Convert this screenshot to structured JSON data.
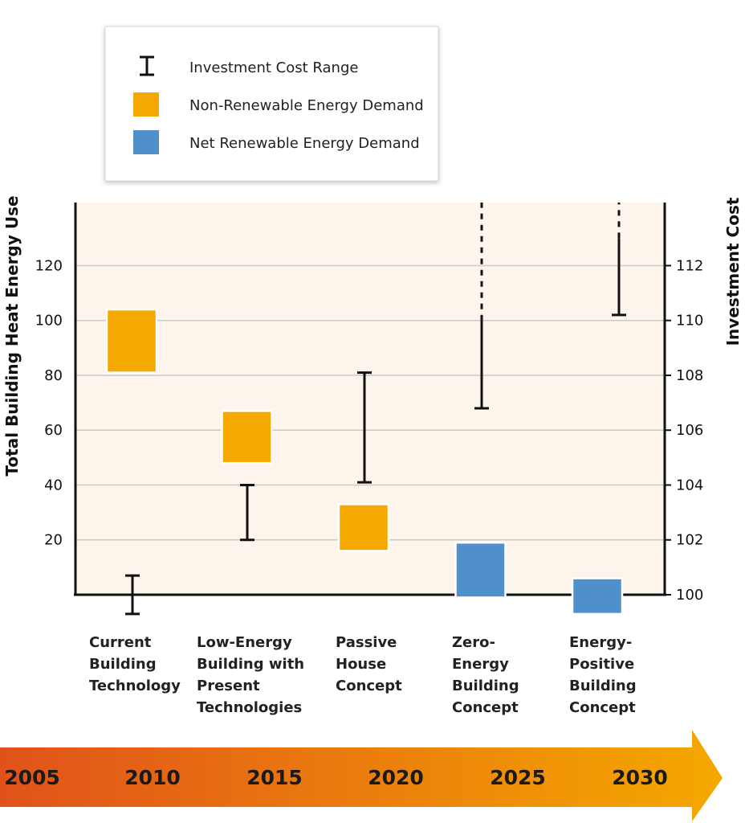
{
  "legend": {
    "items": [
      {
        "label": "Investment Cost Range",
        "symbol": "range"
      },
      {
        "label": "Non-Renewable Energy Demand",
        "symbol": "box",
        "color": "#F5A800"
      },
      {
        "label": "Net Renewable Energy Demand",
        "symbol": "box",
        "color": "#4F8FCB"
      }
    ]
  },
  "chart_data": {
    "type": "box",
    "title": "",
    "ylabel": "Total Building Heat Energy Use",
    "y2label": "Investment Cost",
    "ylim": [
      0,
      143
    ],
    "y2lim": [
      100,
      114.3
    ],
    "yticks": [
      20,
      40,
      60,
      80,
      100,
      120
    ],
    "y2ticks": [
      100,
      102,
      104,
      106,
      108,
      110,
      112
    ],
    "grid": true,
    "legend_position": "top-left",
    "colors": {
      "non_renewable": "#F5A800",
      "net_renewable": "#4F8FCB",
      "plot_bg": "#FDF5EB",
      "range": "#111111"
    },
    "categories": [
      {
        "lines": [
          "Current",
          "Building",
          "Technology"
        ],
        "x": 2010
      },
      {
        "lines": [
          "Low-Energy",
          "Building with",
          "Present",
          "Technologies"
        ],
        "x": 2015
      },
      {
        "lines": [
          "Passive",
          "House",
          "Concept"
        ],
        "x": 2020
      },
      {
        "lines": [
          "Zero-",
          "Energy",
          "Building",
          "Concept"
        ],
        "x": 2025
      },
      {
        "lines": [
          "Energy-",
          "Positive",
          "Building",
          "Concept"
        ],
        "x": 2030
      }
    ],
    "energy_demand": [
      {
        "category": "Current Building Technology",
        "type": "non-renewable",
        "low": 81,
        "high": 104
      },
      {
        "category": "Low-Energy Building with Present Technologies",
        "type": "non-renewable",
        "low": 48,
        "high": 67
      },
      {
        "category": "Passive House Concept",
        "type": "non-renewable",
        "low": 16,
        "high": 33
      },
      {
        "category": "Zero-Energy Building Concept",
        "type": "net-renewable",
        "low": -1,
        "high": 19
      },
      {
        "category": "Energy-Positive Building Concept",
        "type": "net-renewable",
        "low": -7,
        "high": 6
      }
    ],
    "investment_cost_range": [
      {
        "category": "Current Building Technology",
        "low": 99.3,
        "high": 100.7
      },
      {
        "category": "Low-Energy Building with Present Technologies",
        "low": 102,
        "high": 104
      },
      {
        "category": "Passive House Concept",
        "low": 104.1,
        "high": 108.1
      },
      {
        "category": "Zero-Energy Building Concept",
        "low": 106.8,
        "high": 110,
        "open_high": true
      },
      {
        "category": "Energy-Positive Building Concept",
        "low": 110.2,
        "high": 113,
        "open_high": true
      }
    ],
    "timeline": {
      "years": [
        "2005",
        "2010",
        "2015",
        "2020",
        "2025",
        "2030"
      ],
      "gradient": [
        "#E0521A",
        "#F5A800"
      ]
    }
  }
}
